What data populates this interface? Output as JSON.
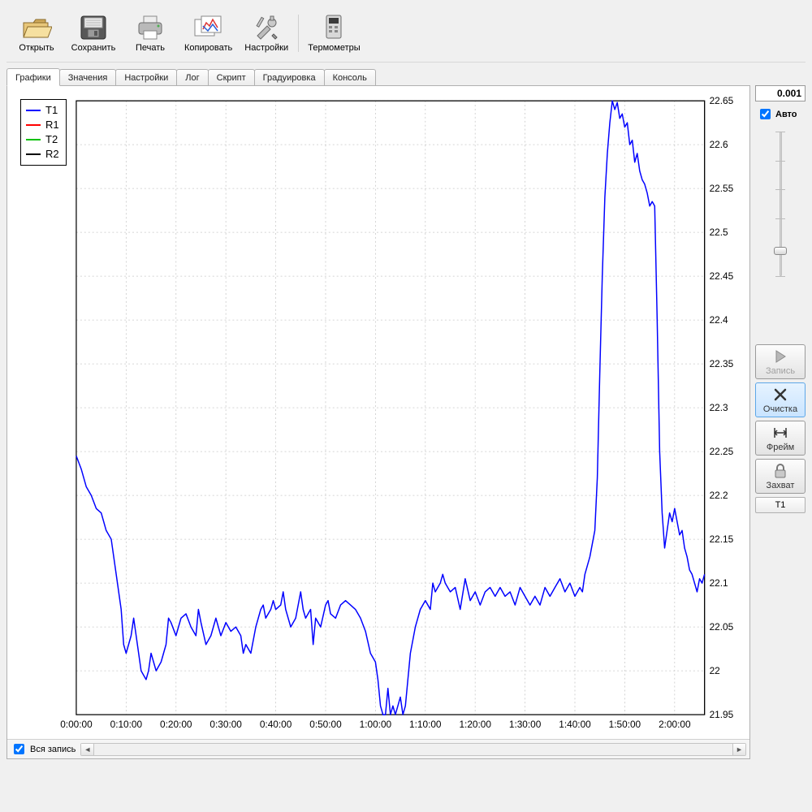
{
  "toolbar": {
    "open": {
      "label": "Открыть"
    },
    "save": {
      "label": "Сохранить"
    },
    "print": {
      "label": "Печать"
    },
    "copy": {
      "label": "Копировать"
    },
    "settings": {
      "label": "Настройки"
    },
    "thermometers": {
      "label": "Термометры"
    }
  },
  "tabs": {
    "items": [
      {
        "label": "Графики",
        "active": true
      },
      {
        "label": "Значения"
      },
      {
        "label": "Настройки"
      },
      {
        "label": "Лог"
      },
      {
        "label": "Скрипт"
      },
      {
        "label": "Градуировка"
      },
      {
        "label": "Консоль"
      }
    ]
  },
  "legend": {
    "items": [
      {
        "label": "T1",
        "color": "#0000ff"
      },
      {
        "label": "R1",
        "color": "#ff0000"
      },
      {
        "label": "T2",
        "color": "#00c000"
      },
      {
        "label": "R2",
        "color": "#000000"
      }
    ]
  },
  "chart": {
    "type": "line",
    "background_color": "#ffffff",
    "grid_color": "#c8c8c8",
    "axis_color": "#000000",
    "line_color": "#0000ff",
    "line_width": 1.5,
    "font_size": 12,
    "tick_font_size": 12,
    "x": {
      "min_sec": 0,
      "max_sec": 7560,
      "tick_step_sec": 600,
      "tick_labels": [
        "0:00:00",
        "0:10:00",
        "0:20:00",
        "0:30:00",
        "0:40:00",
        "0:50:00",
        "1:00:00",
        "1:10:00",
        "1:20:00",
        "1:30:00",
        "1:40:00",
        "1:50:00",
        "2:00:00"
      ]
    },
    "y": {
      "min": 21.95,
      "max": 22.65,
      "tick_step": 0.05,
      "tick_labels": [
        "21.95",
        "22",
        "22.05",
        "22.1",
        "22.15",
        "22.2",
        "22.25",
        "22.3",
        "22.35",
        "22.4",
        "22.45",
        "22.5",
        "22.55",
        "22.6",
        "22.65"
      ]
    },
    "series": {
      "T1": {
        "color": "#0000ff",
        "points_sec_val": [
          [
            0,
            22.245
          ],
          [
            60,
            22.23
          ],
          [
            120,
            22.21
          ],
          [
            180,
            22.2
          ],
          [
            240,
            22.185
          ],
          [
            300,
            22.18
          ],
          [
            360,
            22.16
          ],
          [
            420,
            22.15
          ],
          [
            480,
            22.11
          ],
          [
            540,
            22.07
          ],
          [
            570,
            22.03
          ],
          [
            600,
            22.02
          ],
          [
            660,
            22.04
          ],
          [
            690,
            22.06
          ],
          [
            720,
            22.04
          ],
          [
            780,
            22.0
          ],
          [
            840,
            21.99
          ],
          [
            870,
            22.0
          ],
          [
            900,
            22.02
          ],
          [
            960,
            22.0
          ],
          [
            1020,
            22.01
          ],
          [
            1080,
            22.03
          ],
          [
            1110,
            22.06
          ],
          [
            1140,
            22.055
          ],
          [
            1200,
            22.04
          ],
          [
            1260,
            22.06
          ],
          [
            1320,
            22.065
          ],
          [
            1380,
            22.05
          ],
          [
            1440,
            22.04
          ],
          [
            1470,
            22.07
          ],
          [
            1500,
            22.055
          ],
          [
            1560,
            22.03
          ],
          [
            1620,
            22.04
          ],
          [
            1680,
            22.06
          ],
          [
            1740,
            22.04
          ],
          [
            1800,
            22.055
          ],
          [
            1860,
            22.045
          ],
          [
            1920,
            22.05
          ],
          [
            1980,
            22.04
          ],
          [
            2010,
            22.02
          ],
          [
            2040,
            22.03
          ],
          [
            2100,
            22.02
          ],
          [
            2160,
            22.05
          ],
          [
            2220,
            22.07
          ],
          [
            2250,
            22.075
          ],
          [
            2280,
            22.06
          ],
          [
            2340,
            22.07
          ],
          [
            2370,
            22.08
          ],
          [
            2400,
            22.07
          ],
          [
            2460,
            22.075
          ],
          [
            2490,
            22.09
          ],
          [
            2520,
            22.07
          ],
          [
            2580,
            22.05
          ],
          [
            2640,
            22.06
          ],
          [
            2700,
            22.09
          ],
          [
            2730,
            22.07
          ],
          [
            2760,
            22.06
          ],
          [
            2820,
            22.07
          ],
          [
            2850,
            22.03
          ],
          [
            2880,
            22.06
          ],
          [
            2940,
            22.05
          ],
          [
            3000,
            22.075
          ],
          [
            3030,
            22.08
          ],
          [
            3060,
            22.065
          ],
          [
            3120,
            22.06
          ],
          [
            3180,
            22.075
          ],
          [
            3240,
            22.08
          ],
          [
            3300,
            22.075
          ],
          [
            3360,
            22.07
          ],
          [
            3420,
            22.06
          ],
          [
            3480,
            22.045
          ],
          [
            3540,
            22.02
          ],
          [
            3600,
            22.01
          ],
          [
            3630,
            21.99
          ],
          [
            3660,
            21.96
          ],
          [
            3690,
            21.95
          ],
          [
            3720,
            21.95
          ],
          [
            3750,
            21.98
          ],
          [
            3780,
            21.95
          ],
          [
            3810,
            21.96
          ],
          [
            3840,
            21.95
          ],
          [
            3870,
            21.96
          ],
          [
            3900,
            21.97
          ],
          [
            3930,
            21.95
          ],
          [
            3960,
            21.96
          ],
          [
            3990,
            21.99
          ],
          [
            4020,
            22.02
          ],
          [
            4080,
            22.05
          ],
          [
            4140,
            22.07
          ],
          [
            4200,
            22.08
          ],
          [
            4260,
            22.07
          ],
          [
            4290,
            22.1
          ],
          [
            4320,
            22.09
          ],
          [
            4380,
            22.1
          ],
          [
            4410,
            22.11
          ],
          [
            4440,
            22.1
          ],
          [
            4500,
            22.09
          ],
          [
            4560,
            22.095
          ],
          [
            4620,
            22.07
          ],
          [
            4680,
            22.105
          ],
          [
            4740,
            22.08
          ],
          [
            4800,
            22.09
          ],
          [
            4860,
            22.075
          ],
          [
            4920,
            22.09
          ],
          [
            4980,
            22.095
          ],
          [
            5040,
            22.085
          ],
          [
            5100,
            22.095
          ],
          [
            5160,
            22.085
          ],
          [
            5220,
            22.09
          ],
          [
            5280,
            22.075
          ],
          [
            5340,
            22.095
          ],
          [
            5400,
            22.085
          ],
          [
            5460,
            22.075
          ],
          [
            5520,
            22.085
          ],
          [
            5580,
            22.075
          ],
          [
            5640,
            22.095
          ],
          [
            5700,
            22.085
          ],
          [
            5760,
            22.095
          ],
          [
            5820,
            22.105
          ],
          [
            5880,
            22.09
          ],
          [
            5940,
            22.1
          ],
          [
            6000,
            22.085
          ],
          [
            6060,
            22.095
          ],
          [
            6090,
            22.09
          ],
          [
            6120,
            22.11
          ],
          [
            6180,
            22.13
          ],
          [
            6240,
            22.16
          ],
          [
            6270,
            22.22
          ],
          [
            6300,
            22.34
          ],
          [
            6330,
            22.45
          ],
          [
            6360,
            22.54
          ],
          [
            6390,
            22.59
          ],
          [
            6420,
            22.625
          ],
          [
            6450,
            22.65
          ],
          [
            6480,
            22.64
          ],
          [
            6510,
            22.648
          ],
          [
            6540,
            22.63
          ],
          [
            6570,
            22.635
          ],
          [
            6600,
            22.62
          ],
          [
            6630,
            22.625
          ],
          [
            6660,
            22.6
          ],
          [
            6690,
            22.605
          ],
          [
            6720,
            22.58
          ],
          [
            6750,
            22.59
          ],
          [
            6780,
            22.57
          ],
          [
            6810,
            22.56
          ],
          [
            6840,
            22.555
          ],
          [
            6870,
            22.545
          ],
          [
            6900,
            22.53
          ],
          [
            6930,
            22.535
          ],
          [
            6960,
            22.53
          ],
          [
            6990,
            22.4
          ],
          [
            7020,
            22.25
          ],
          [
            7050,
            22.18
          ],
          [
            7080,
            22.14
          ],
          [
            7110,
            22.16
          ],
          [
            7140,
            22.18
          ],
          [
            7170,
            22.17
          ],
          [
            7200,
            22.185
          ],
          [
            7230,
            22.17
          ],
          [
            7260,
            22.155
          ],
          [
            7290,
            22.16
          ],
          [
            7320,
            22.14
          ],
          [
            7350,
            22.13
          ],
          [
            7380,
            22.115
          ],
          [
            7410,
            22.11
          ],
          [
            7440,
            22.1
          ],
          [
            7470,
            22.09
          ],
          [
            7500,
            22.105
          ],
          [
            7530,
            22.1
          ],
          [
            7560,
            22.11
          ]
        ]
      }
    }
  },
  "bottom": {
    "whole_record_label": "Вся запись",
    "whole_record_checked": true
  },
  "side": {
    "value_display": "0.001",
    "auto_label": "Авто",
    "auto_checked": true,
    "slider_value_pct": 80,
    "record_label": "Запись",
    "clear_label": "Очистка",
    "frame_label": "Фрейм",
    "capture_label": "Захват",
    "channel_label": "T1"
  }
}
